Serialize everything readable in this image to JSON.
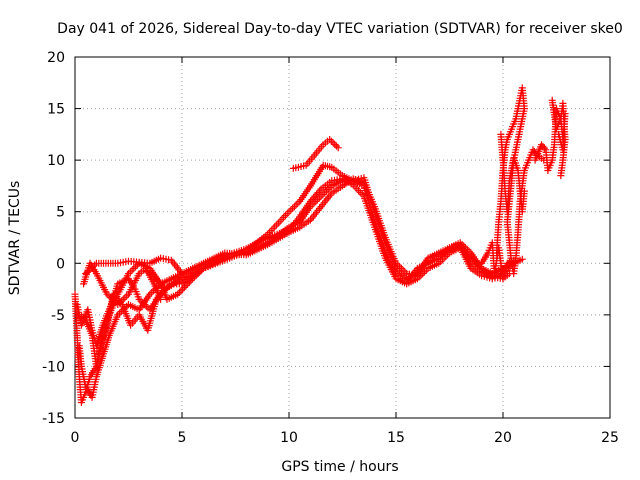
{
  "chart_data": {
    "type": "scatter",
    "title": "Day 041 of 2026, Sidereal Day-to-day VTEC variation (SDTVAR) for receiver ske0",
    "xlabel": "GPS time / hours",
    "ylabel": "SDTVAR / TECUs",
    "xlim": [
      0,
      25
    ],
    "ylim": [
      -15,
      20
    ],
    "xticks": [
      0,
      5,
      10,
      15,
      20,
      25
    ],
    "yticks": [
      -15,
      -10,
      -5,
      0,
      5,
      10,
      15,
      20
    ],
    "grid": true,
    "marker": "+",
    "color": "#ff0000",
    "series": [
      {
        "name": "track-1",
        "points": [
          [
            0.0,
            -3
          ],
          [
            0.1,
            -7
          ],
          [
            0.2,
            -11
          ],
          [
            0.3,
            -13.5
          ],
          [
            0.5,
            -12.5
          ],
          [
            0.7,
            -11
          ],
          [
            1.0,
            -10
          ],
          [
            1.3,
            -7
          ],
          [
            1.6,
            -5
          ],
          [
            2.0,
            -3
          ],
          [
            2.5,
            -1
          ],
          [
            3.0,
            0
          ],
          [
            3.5,
            -0.5
          ],
          [
            4.0,
            -2
          ],
          [
            4.3,
            -3.5
          ],
          [
            4.8,
            -3
          ],
          [
            5.5,
            -1.5
          ],
          [
            6.0,
            -0.5
          ],
          [
            7.0,
            0.5
          ],
          [
            8.0,
            1
          ],
          [
            9.0,
            2
          ],
          [
            10.0,
            3.5
          ],
          [
            10.5,
            4
          ],
          [
            11.0,
            5.5
          ],
          [
            11.5,
            6.5
          ],
          [
            12.0,
            7.5
          ],
          [
            12.5,
            8
          ],
          [
            13.0,
            8
          ],
          [
            13.5,
            8.3
          ],
          [
            14.0,
            5
          ],
          [
            14.5,
            2
          ],
          [
            15.0,
            -0.5
          ],
          [
            15.5,
            -1.5
          ],
          [
            16.0,
            -1
          ],
          [
            16.5,
            0.5
          ],
          [
            17.0,
            1
          ],
          [
            17.5,
            1.5
          ],
          [
            18.0,
            2
          ],
          [
            18.5,
            1
          ],
          [
            19.0,
            -0.5
          ],
          [
            19.5,
            -1.3
          ],
          [
            20.0,
            -1
          ],
          [
            20.5,
            0
          ],
          [
            20.9,
            0.4
          ]
        ]
      },
      {
        "name": "track-2",
        "points": [
          [
            0.1,
            -4
          ],
          [
            0.3,
            -6
          ],
          [
            0.6,
            -4.5
          ],
          [
            0.8,
            -6.5
          ],
          [
            1.0,
            -8
          ],
          [
            1.3,
            -6
          ],
          [
            1.7,
            -4
          ],
          [
            2.0,
            -2
          ],
          [
            2.5,
            -1.5
          ],
          [
            2.8,
            -2.5
          ],
          [
            3.0,
            -3.5
          ],
          [
            3.5,
            -4.5
          ],
          [
            4.0,
            -3
          ],
          [
            4.5,
            -2
          ],
          [
            5.0,
            -2
          ],
          [
            6.0,
            -0.5
          ],
          [
            7.0,
            0.3
          ],
          [
            8.0,
            1.2
          ],
          [
            9.0,
            2.8
          ],
          [
            10.0,
            5
          ],
          [
            10.5,
            6
          ],
          [
            11.0,
            7.5
          ],
          [
            11.3,
            8.5
          ],
          [
            11.6,
            9.5
          ],
          [
            12.0,
            9.3
          ],
          [
            12.5,
            8.5
          ],
          [
            13.0,
            8
          ],
          [
            13.5,
            7.5
          ],
          [
            14.0,
            4
          ],
          [
            14.5,
            1
          ],
          [
            15.0,
            -1
          ],
          [
            15.5,
            -1.8
          ],
          [
            16.0,
            -0.5
          ],
          [
            16.5,
            0
          ],
          [
            17.0,
            0.5
          ],
          [
            17.5,
            1.5
          ],
          [
            18.0,
            1.8
          ],
          [
            18.5,
            0
          ],
          [
            19.0,
            -0.8
          ],
          [
            19.5,
            -1.3
          ],
          [
            20.0,
            -1.5
          ],
          [
            20.3,
            -1
          ]
        ]
      },
      {
        "name": "track-3",
        "points": [
          [
            0.2,
            -5
          ],
          [
            0.5,
            -5.5
          ],
          [
            0.8,
            -7
          ],
          [
            1.0,
            -10
          ],
          [
            1.2,
            -8
          ],
          [
            1.5,
            -6
          ],
          [
            1.8,
            -3
          ],
          [
            2.2,
            -4
          ],
          [
            2.6,
            -6
          ],
          [
            3.0,
            -5
          ],
          [
            3.4,
            -6.5
          ],
          [
            3.8,
            -3.5
          ],
          [
            4.2,
            -2.5
          ],
          [
            5.0,
            -1.5
          ],
          [
            6.0,
            -0.2
          ],
          [
            7.0,
            0.7
          ],
          [
            8.0,
            1.4
          ],
          [
            9.0,
            2.5
          ],
          [
            10.0,
            3.2
          ],
          [
            10.5,
            4.5
          ],
          [
            11.0,
            6
          ],
          [
            11.5,
            7.2
          ],
          [
            12.0,
            8
          ],
          [
            12.5,
            8.2
          ],
          [
            13.0,
            7.6
          ],
          [
            13.5,
            6.5
          ],
          [
            14.0,
            3.5
          ],
          [
            14.5,
            0.5
          ],
          [
            15.0,
            -1.5
          ],
          [
            15.5,
            -2
          ],
          [
            16.0,
            -1.5
          ],
          [
            16.5,
            -0.5
          ],
          [
            17.0,
            0
          ],
          [
            17.5,
            1
          ],
          [
            18.0,
            1.5
          ],
          [
            18.5,
            -0.5
          ],
          [
            19.0,
            -1.2
          ],
          [
            19.5,
            -1.5
          ],
          [
            20.0,
            -1.2
          ]
        ]
      },
      {
        "name": "track-4",
        "points": [
          [
            0.2,
            -8
          ],
          [
            0.3,
            -10
          ],
          [
            0.5,
            -12
          ],
          [
            0.8,
            -13
          ],
          [
            1.0,
            -11
          ],
          [
            1.3,
            -9
          ],
          [
            1.6,
            -7
          ],
          [
            2.0,
            -5
          ],
          [
            2.5,
            -4
          ],
          [
            3.0,
            -4.5
          ],
          [
            3.5,
            -3
          ],
          [
            4.0,
            -2
          ],
          [
            4.5,
            -1.5
          ],
          [
            5.0,
            -1
          ],
          [
            6.0,
            0
          ],
          [
            7.0,
            1
          ],
          [
            8.0,
            0.8
          ],
          [
            9.0,
            1.8
          ],
          [
            10.0,
            3
          ],
          [
            10.5,
            3.5
          ],
          [
            11.0,
            4.2
          ],
          [
            11.5,
            5.5
          ],
          [
            12.0,
            6.8
          ],
          [
            12.5,
            7.5
          ],
          [
            13.0,
            8.2
          ],
          [
            13.5,
            7.8
          ],
          [
            14.0,
            5.5
          ],
          [
            14.5,
            2.5
          ],
          [
            15.0,
            0
          ],
          [
            15.5,
            -1
          ],
          [
            16.0,
            -1.2
          ],
          [
            16.5,
            0.5
          ],
          [
            17.0,
            0.8
          ],
          [
            17.5,
            1.2
          ],
          [
            18.0,
            1.6
          ],
          [
            18.5,
            0.5
          ],
          [
            19.0,
            -0.5
          ],
          [
            19.5,
            -1
          ],
          [
            20.0,
            -0.5
          ],
          [
            20.5,
            0.2
          ]
        ]
      },
      {
        "name": "track-5",
        "points": [
          [
            0.5,
            -1
          ],
          [
            1.0,
            0
          ],
          [
            2.0,
            0
          ],
          [
            2.5,
            0.2
          ],
          [
            3.0,
            0.1
          ],
          [
            3.5,
            0
          ],
          [
            4.0,
            0.5
          ],
          [
            4.5,
            0.3
          ],
          [
            5.0,
            -1
          ],
          [
            4.6,
            -2
          ],
          [
            4.2,
            -2.5
          ],
          [
            3.8,
            -1.5
          ],
          [
            3.4,
            -0.8
          ]
        ]
      },
      {
        "name": "track-6",
        "points": [
          [
            0.4,
            -2
          ],
          [
            0.7,
            0
          ],
          [
            1.0,
            -1
          ],
          [
            1.5,
            -3
          ],
          [
            2.0,
            -4
          ],
          [
            2.5,
            -3
          ],
          [
            3.0,
            -1
          ],
          [
            3.3,
            -0.5
          ],
          [
            3.7,
            -2
          ],
          [
            4.0,
            -3.5
          ]
        ]
      },
      {
        "name": "track-7",
        "points": [
          [
            10.2,
            9.2
          ],
          [
            10.8,
            9.5
          ],
          [
            11.2,
            10.5
          ],
          [
            11.6,
            11.5
          ],
          [
            11.9,
            12
          ],
          [
            12.3,
            11.2
          ]
        ]
      },
      {
        "name": "track-8",
        "points": [
          [
            19.7,
            1
          ],
          [
            19.8,
            4
          ],
          [
            19.9,
            6
          ],
          [
            20.0,
            9
          ],
          [
            20.1,
            11
          ],
          [
            20.2,
            12
          ],
          [
            20.4,
            13
          ],
          [
            20.6,
            14
          ],
          [
            20.8,
            16
          ],
          [
            20.9,
            17
          ],
          [
            21.0,
            15
          ],
          [
            20.8,
            13
          ],
          [
            20.6,
            11
          ],
          [
            20.5,
            10
          ],
          [
            20.4,
            8
          ],
          [
            20.3,
            6
          ],
          [
            20.2,
            4
          ],
          [
            20.3,
            2
          ],
          [
            20.4,
            0
          ],
          [
            20.5,
            -1
          ],
          [
            20.6,
            0.5
          ],
          [
            20.7,
            3
          ],
          [
            20.8,
            6
          ],
          [
            21.0,
            9
          ],
          [
            21.2,
            10
          ],
          [
            21.4,
            11
          ],
          [
            21.6,
            10.5
          ],
          [
            21.9,
            10
          ]
        ]
      },
      {
        "name": "track-9",
        "points": [
          [
            19.9,
            12.5
          ],
          [
            20.0,
            10
          ],
          [
            20.1,
            7
          ],
          [
            20.2,
            5
          ],
          [
            20.3,
            8
          ],
          [
            20.5,
            10.2
          ],
          [
            20.7,
            9
          ],
          [
            20.8,
            7
          ],
          [
            20.9,
            5
          ],
          [
            21.0,
            7
          ]
        ]
      },
      {
        "name": "track-10",
        "points": [
          [
            21.5,
            10
          ],
          [
            21.8,
            11.5
          ],
          [
            22.0,
            11
          ],
          [
            22.1,
            9
          ],
          [
            22.3,
            10
          ],
          [
            22.4,
            11.5
          ],
          [
            22.5,
            15
          ],
          [
            22.7,
            14
          ],
          [
            22.8,
            15.5
          ],
          [
            22.9,
            12
          ],
          [
            22.8,
            10
          ],
          [
            22.7,
            8.5
          ]
        ]
      },
      {
        "name": "track-11",
        "points": [
          [
            22.3,
            15.8
          ],
          [
            22.5,
            13
          ],
          [
            22.7,
            14
          ],
          [
            22.8,
            12
          ],
          [
            22.9,
            14.5
          ],
          [
            22.8,
            11
          ],
          [
            22.6,
            12.5
          ]
        ]
      },
      {
        "name": "track-12",
        "points": [
          [
            19.0,
            0
          ],
          [
            19.3,
            1
          ],
          [
            19.5,
            2
          ],
          [
            19.6,
            -1
          ],
          [
            19.8,
            1.5
          ],
          [
            20.0,
            -1.5
          ],
          [
            20.2,
            0
          ],
          [
            20.5,
            0.3
          ]
        ]
      }
    ]
  }
}
